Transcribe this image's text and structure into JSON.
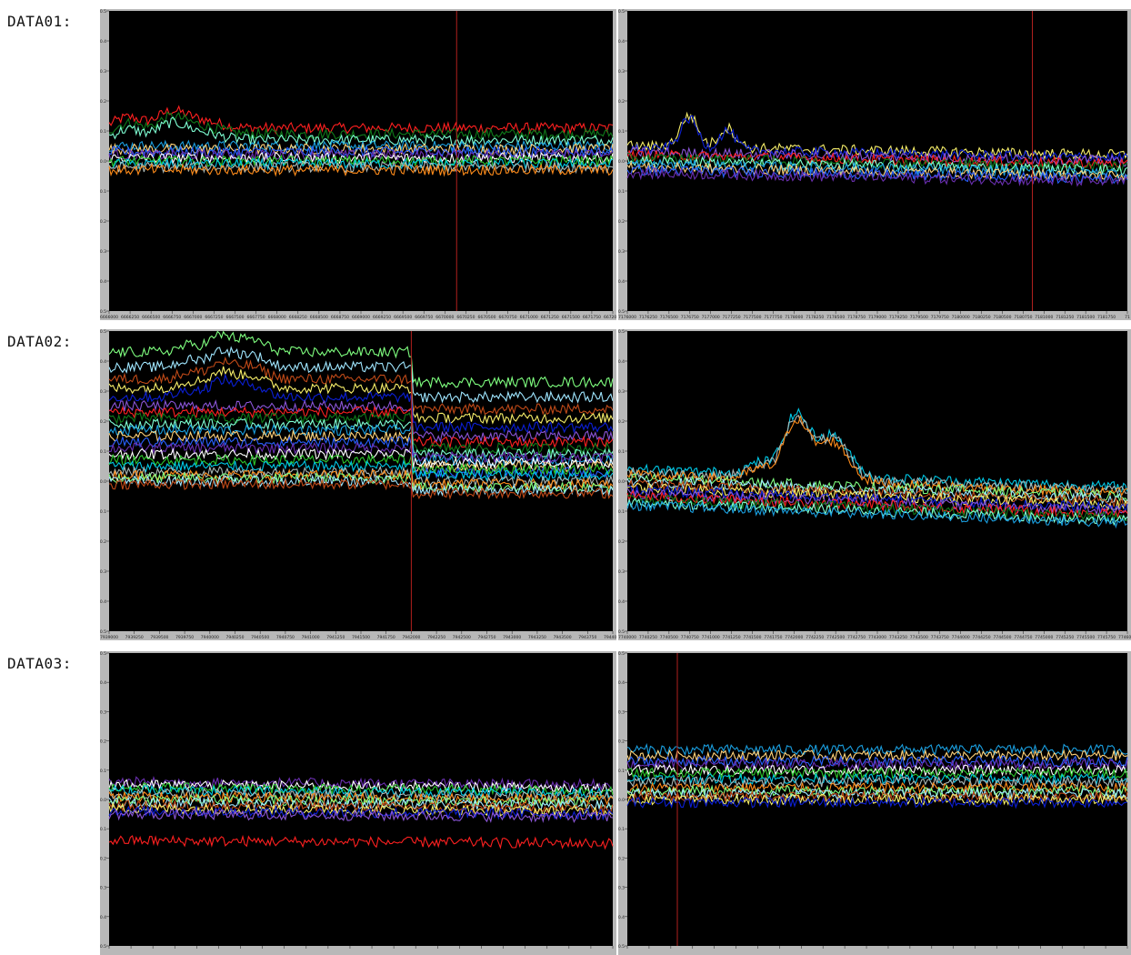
{
  "rows": [
    {
      "label": "DATA01:"
    },
    {
      "label": "DATA02:"
    },
    {
      "label": "DATA03:"
    }
  ],
  "colors": {
    "plot_bg": "#000000",
    "frame": "#b8b8b8",
    "marker": "#b0201e",
    "palette": [
      "#ff2020",
      "#ff8c1a",
      "#ffd27a",
      "#f7ef6a",
      "#2cc62c",
      "#0f7a1a",
      "#7fff7f",
      "#2860ff",
      "#0b1fd6",
      "#00c8e6",
      "#7fffd4",
      "#9fe6ff",
      "#6a2fb0",
      "#8a55d6",
      "#a9b7b5",
      "#1a9fe0",
      "#c04a18",
      "#ffffff"
    ]
  },
  "chart_data": [
    {
      "type": "line",
      "id": "r1-left",
      "row": 0,
      "ylim": [
        -0.5,
        0.5
      ],
      "yticks": [
        0.5,
        0.4,
        0.3,
        0.2,
        0.1,
        0.0,
        -0.1,
        -0.2,
        -0.3,
        -0.4,
        -0.5
      ],
      "ytick_labels": [
        "0.5",
        "0.4",
        "0.3",
        "0.2",
        "0.1",
        "0.0",
        "-0.1",
        "-0.2",
        "-0.3",
        "-0.4",
        "-0.5"
      ],
      "xticks": [
        "6666000",
        "6666250",
        "6666500",
        "6666750",
        "6667000",
        "6667250",
        "6667500",
        "6667750",
        "6668000",
        "6668250",
        "6668500",
        "6668750",
        "6669000",
        "6669250",
        "6669500",
        "6669750",
        "6670000",
        "6670250",
        "6670500",
        "6670750",
        "6671000",
        "6671250",
        "6671500",
        "6671750",
        "6672000"
      ],
      "marker_frac": 0.69,
      "grid": false,
      "legend": "none",
      "series_levels": [
        0.11,
        0.09,
        0.07,
        0.05,
        0.04,
        0.03,
        0.02,
        0.01,
        0.0,
        -0.01,
        -0.02,
        -0.03
      ],
      "bump": {
        "at": 0.08,
        "width": 0.08,
        "amp": 0.05,
        "levels": [
          0.11,
          0.09,
          0.07
        ]
      }
    },
    {
      "type": "line",
      "id": "r1-right",
      "row": 0,
      "ylim": [
        -0.5,
        0.5
      ],
      "yticks": [
        0.5,
        0.4,
        0.3,
        0.2,
        0.1,
        0.0,
        -0.1,
        -0.2,
        -0.3,
        -0.4,
        -0.5
      ],
      "ytick_labels": [
        "0.5",
        "0.4",
        "0.3",
        "0.2",
        "0.1",
        "0.0",
        "-0.1",
        "-0.2",
        "-0.3",
        "-0.4",
        "-0.5"
      ],
      "xticks": [
        "7176000",
        "7176250",
        "7176500",
        "7176750",
        "7177000",
        "7177250",
        "7177500",
        "7177750",
        "7178000",
        "7178250",
        "7178500",
        "7178750",
        "7179000",
        "7179250",
        "7179500",
        "7179750",
        "7180000",
        "7180250",
        "7180500",
        "7180750",
        "7181000",
        "7181250",
        "7181500",
        "7181750",
        "71"
      ],
      "marker_frac": 0.81,
      "grid": false,
      "legend": "none",
      "series_levels": [
        0.05,
        0.04,
        0.03,
        0.02,
        0.01,
        0.0,
        -0.01,
        -0.02,
        -0.03,
        -0.04
      ],
      "slope": -0.03,
      "bump": {
        "at": 0.12,
        "width": 0.03,
        "amp": 0.11,
        "levels": [
          0.05,
          0.04
        ]
      }
    },
    {
      "type": "line",
      "id": "r2-left",
      "row": 1,
      "ylim": [
        -0.5,
        0.5
      ],
      "yticks": [
        0.5,
        0.4,
        0.3,
        0.2,
        0.1,
        0.0,
        -0.1,
        -0.2,
        -0.3,
        -0.4,
        -0.5
      ],
      "ytick_labels": [
        "0.5",
        "0.4",
        "0.3",
        "0.2",
        "0.1",
        "0.0",
        "-0.1",
        "-0.2",
        "-0.3",
        "-0.4",
        "-0.5"
      ],
      "xticks": [
        "7939000",
        "7939250",
        "7939500",
        "7939750",
        "7940000",
        "7940250",
        "7940500",
        "7940750",
        "7941000",
        "7941250",
        "7941500",
        "7941750",
        "7942000",
        "7942250",
        "7942500",
        "7942750",
        "7943000",
        "7943250",
        "7943500",
        "7943750",
        "7944000"
      ],
      "marker_frac": 0.6,
      "grid": false,
      "legend": "none",
      "series_levels": [
        0.43,
        0.38,
        0.34,
        0.31,
        0.28,
        0.25,
        0.23,
        0.21,
        0.19,
        0.17,
        0.15,
        0.13,
        0.11,
        0.09,
        0.07,
        0.05,
        0.03,
        0.02,
        0.01,
        0.0,
        -0.01
      ],
      "drop_after_marker": 0.1,
      "bump": {
        "at": 0.2,
        "width": 0.05,
        "amp": 0.07,
        "levels": [
          0.43,
          0.38,
          0.34,
          0.31,
          0.28
        ]
      }
    },
    {
      "type": "line",
      "id": "r2-right",
      "row": 1,
      "ylim": [
        -0.5,
        0.5
      ],
      "yticks": [
        0.5,
        0.4,
        0.3,
        0.2,
        0.1,
        0.0,
        -0.1,
        -0.2,
        -0.3,
        -0.4,
        -0.5
      ],
      "ytick_labels": [
        "0.5",
        "0.4",
        "0.3",
        "0.2",
        "0.1",
        "0.0",
        "-0.1",
        "-0.2",
        "-0.3",
        "-0.4",
        "-0.5"
      ],
      "xticks": [
        "7740000",
        "7740250",
        "7740500",
        "7740750",
        "7741000",
        "7741250",
        "7741500",
        "7741750",
        "7742000",
        "7742250",
        "7742500",
        "7742750",
        "7743000",
        "7743250",
        "7743500",
        "7743750",
        "7744000",
        "7744250",
        "7744500",
        "7744750",
        "7745000",
        "7745250",
        "7745500",
        "7745750",
        "7746000"
      ],
      "marker_frac": null,
      "grid": false,
      "legend": "none",
      "series_levels": [
        0.04,
        0.03,
        0.02,
        0.01,
        0.0,
        -0.01,
        -0.02,
        -0.03,
        -0.04,
        -0.05,
        -0.06,
        -0.07,
        -0.08
      ],
      "slope": -0.06,
      "bump": {
        "at": 0.33,
        "width": 0.06,
        "amp": 0.2,
        "levels": [
          0.04,
          0.03,
          0.02
        ]
      }
    },
    {
      "type": "line",
      "id": "r3-left",
      "row": 2,
      "ylim": [
        -0.5,
        0.5
      ],
      "yticks": [
        0.5,
        0.4,
        0.3,
        0.2,
        0.1,
        0.0,
        -0.1,
        -0.2,
        -0.3,
        -0.4,
        -0.5
      ],
      "ytick_labels": [
        "0.5",
        "0.4",
        "0.3",
        "0.2",
        "0.1",
        "0.0",
        "-0.1",
        "-0.2",
        "-0.3",
        "-0.4",
        "-0.5"
      ],
      "xticks": [],
      "marker_frac": null,
      "grid": false,
      "legend": "none",
      "series_levels": [
        0.06,
        0.05,
        0.04,
        0.03,
        0.02,
        0.01,
        0.0,
        -0.01,
        -0.02,
        -0.03,
        -0.04,
        -0.05,
        -0.14
      ],
      "slope": -0.01
    },
    {
      "type": "line",
      "id": "r3-right",
      "row": 2,
      "ylim": [
        -0.5,
        0.5
      ],
      "yticks": [
        0.5,
        0.4,
        0.3,
        0.2,
        0.1,
        0.0,
        -0.1,
        -0.2,
        -0.3,
        -0.4,
        -0.5
      ],
      "ytick_labels": [
        "0.5",
        "0.4",
        "0.3",
        "0.2",
        "0.1",
        "0.0",
        "-0.1",
        "-0.2",
        "-0.3",
        "-0.4",
        "-0.5"
      ],
      "xticks": [],
      "marker_frac": 0.1,
      "grid": false,
      "legend": "none",
      "series_levels": [
        0.17,
        0.15,
        0.13,
        0.12,
        0.1,
        0.09,
        0.07,
        0.06,
        0.04,
        0.03,
        0.02,
        0.01,
        0.0,
        -0.01
      ]
    }
  ]
}
